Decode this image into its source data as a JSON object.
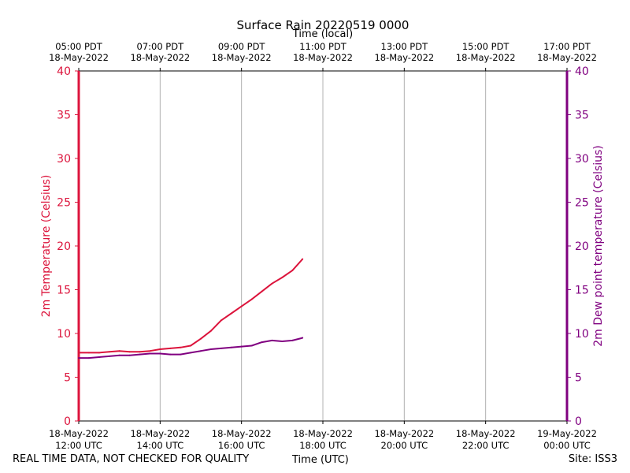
{
  "chart_data": {
    "type": "line",
    "title": "Surface Rain 20220519 0000",
    "x_top_label": "Time (local)",
    "xlabel": "Time (UTC)",
    "ylabel_left": "2m Temperature (Celsius)",
    "ylabel_right": "2m Dew point temperature (Celsius)",
    "xlim_hours_utc": [
      12,
      24
    ],
    "ylim": [
      0,
      40
    ],
    "yticks": [
      0,
      5,
      10,
      15,
      20,
      25,
      30,
      35,
      40
    ],
    "grid": "vertical",
    "bottom_ticks": [
      {
        "hour": 12,
        "line1": "18-May-2022",
        "line2": "12:00 UTC"
      },
      {
        "hour": 14,
        "line1": "18-May-2022",
        "line2": "14:00 UTC"
      },
      {
        "hour": 16,
        "line1": "18-May-2022",
        "line2": "16:00 UTC"
      },
      {
        "hour": 18,
        "line1": "18-May-2022",
        "line2": "18:00 UTC"
      },
      {
        "hour": 20,
        "line1": "18-May-2022",
        "line2": "20:00 UTC"
      },
      {
        "hour": 22,
        "line1": "18-May-2022",
        "line2": "22:00 UTC"
      },
      {
        "hour": 24,
        "line1": "19-May-2022",
        "line2": "00:00 UTC"
      }
    ],
    "top_ticks": [
      {
        "hour": 12,
        "line1": "05:00 PDT",
        "line2": "18-May-2022"
      },
      {
        "hour": 14,
        "line1": "07:00 PDT",
        "line2": "18-May-2022"
      },
      {
        "hour": 16,
        "line1": "09:00 PDT",
        "line2": "18-May-2022"
      },
      {
        "hour": 18,
        "line1": "11:00 PDT",
        "line2": "18-May-2022"
      },
      {
        "hour": 20,
        "line1": "13:00 PDT",
        "line2": "18-May-2022"
      },
      {
        "hour": 22,
        "line1": "15:00 PDT",
        "line2": "18-May-2022"
      },
      {
        "hour": 24,
        "line1": "17:00 PDT",
        "line2": "18-May-2022"
      }
    ],
    "series": [
      {
        "name": "2m Temperature",
        "axis": "left",
        "color": "#dc143c",
        "x": [
          12.0,
          12.25,
          12.5,
          12.75,
          13.0,
          13.25,
          13.5,
          13.75,
          14.0,
          14.25,
          14.5,
          14.75,
          15.0,
          15.25,
          15.5,
          15.75,
          16.0,
          16.25,
          16.5,
          16.75,
          17.0,
          17.25,
          17.5
        ],
        "values": [
          7.8,
          7.8,
          7.8,
          7.9,
          8.0,
          7.9,
          7.9,
          8.0,
          8.2,
          8.3,
          8.4,
          8.6,
          9.4,
          10.3,
          11.5,
          12.3,
          13.1,
          13.9,
          14.8,
          15.7,
          16.4,
          17.2,
          18.5
        ]
      },
      {
        "name": "2m Dew point temperature",
        "axis": "right",
        "color": "#800080",
        "x": [
          12.0,
          12.25,
          12.5,
          12.75,
          13.0,
          13.25,
          13.5,
          13.75,
          14.0,
          14.25,
          14.5,
          14.75,
          15.0,
          15.25,
          15.5,
          15.75,
          16.0,
          16.25,
          16.5,
          16.75,
          17.0,
          17.25,
          17.5
        ],
        "values": [
          7.2,
          7.2,
          7.3,
          7.4,
          7.5,
          7.5,
          7.6,
          7.7,
          7.7,
          7.6,
          7.6,
          7.8,
          8.0,
          8.2,
          8.3,
          8.4,
          8.5,
          8.6,
          9.0,
          9.2,
          9.1,
          9.2,
          9.5
        ]
      }
    ]
  },
  "footer": {
    "left": "REAL TIME DATA, NOT CHECKED FOR QUALITY",
    "center": "Time (UTC)",
    "right": "Site: ISS3"
  }
}
